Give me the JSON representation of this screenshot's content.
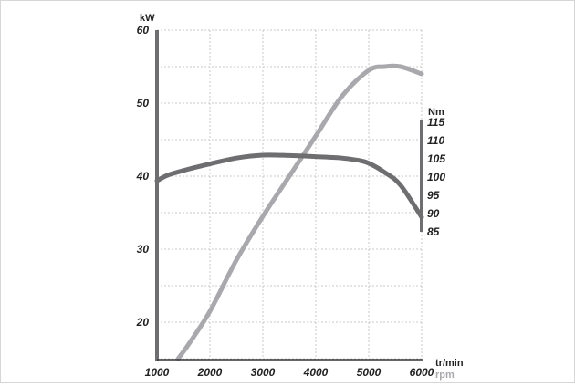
{
  "chart_data": {
    "type": "line",
    "x_label_top": "tr/min",
    "x_label_bottom": "rpm",
    "y_left_label": "kW",
    "y_right_label": "Nm",
    "x_ticks": [
      "1000",
      "2000",
      "3000",
      "4000",
      "5000",
      "6000"
    ],
    "y_left_ticks": [
      "60",
      "50",
      "40",
      "30",
      "20"
    ],
    "y_right_ticks": [
      "115",
      "110",
      "105",
      "100",
      "95",
      "90",
      "85"
    ],
    "xlim": [
      1000,
      6000
    ],
    "ylim_left": [
      15,
      60
    ],
    "ylim_right": [
      85,
      115
    ],
    "grid": true,
    "series": [
      {
        "axis": "left",
        "color": "#a9a9ad",
        "x": [
          1400,
          1600,
          2000,
          2500,
          3000,
          3500,
          4000,
          4500,
          5000,
          5300,
          5600,
          6000
        ],
        "values": [
          15,
          17,
          21.5,
          28.5,
          34.5,
          40,
          45.5,
          51,
          54.5,
          55,
          55,
          54
        ]
      },
      {
        "axis": "right",
        "color": "#6e6e70",
        "x": [
          1000,
          1200,
          1500,
          2000,
          2500,
          3000,
          3500,
          4000,
          4500,
          4800,
          5000,
          5300,
          5600,
          6000
        ],
        "values": [
          99,
          100.5,
          101.8,
          103.6,
          105.2,
          106,
          105.9,
          105.6,
          105.2,
          104.6,
          103.8,
          101.3,
          97.8,
          89
        ]
      }
    ]
  }
}
